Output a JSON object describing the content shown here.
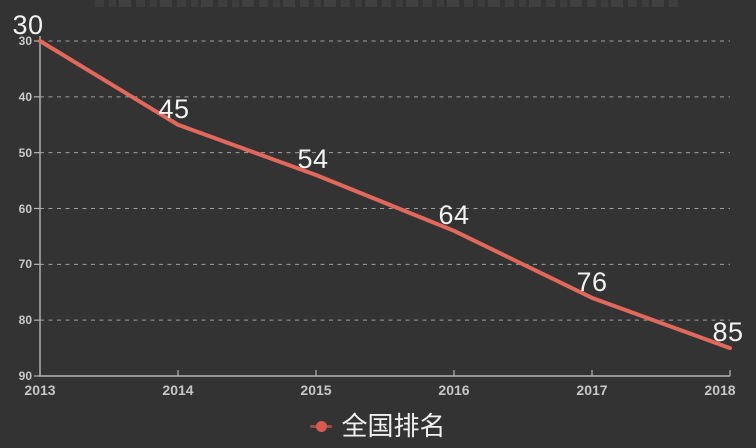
{
  "chart_data": {
    "type": "line",
    "categories": [
      "2013",
      "2014",
      "2015",
      "2016",
      "2017",
      "2018"
    ],
    "series": [
      {
        "name": "全国排名",
        "values": [
          30,
          45,
          54,
          64,
          76,
          85
        ]
      }
    ],
    "y_ticks": [
      30,
      40,
      50,
      60,
      70,
      80,
      90
    ],
    "y_axis": {
      "min": 30,
      "max": 90,
      "inverted": true
    },
    "x_axis": {
      "label_every": 1
    },
    "grid": {
      "horizontal_dashed": true,
      "vertical": false
    },
    "legend": {
      "position": "bottom-center",
      "entries": [
        "全国排名"
      ]
    },
    "colors": {
      "background": "#333333",
      "line": "#e2685c",
      "grid": "#a0a0a0",
      "axis": "#b5b5b5",
      "tick_label": "#c9c9c9",
      "data_label": "#f2f2f2",
      "legend_text": "#f0f0f0",
      "legend_dot": "#d85a4f",
      "legend_line": "#94504a"
    }
  }
}
